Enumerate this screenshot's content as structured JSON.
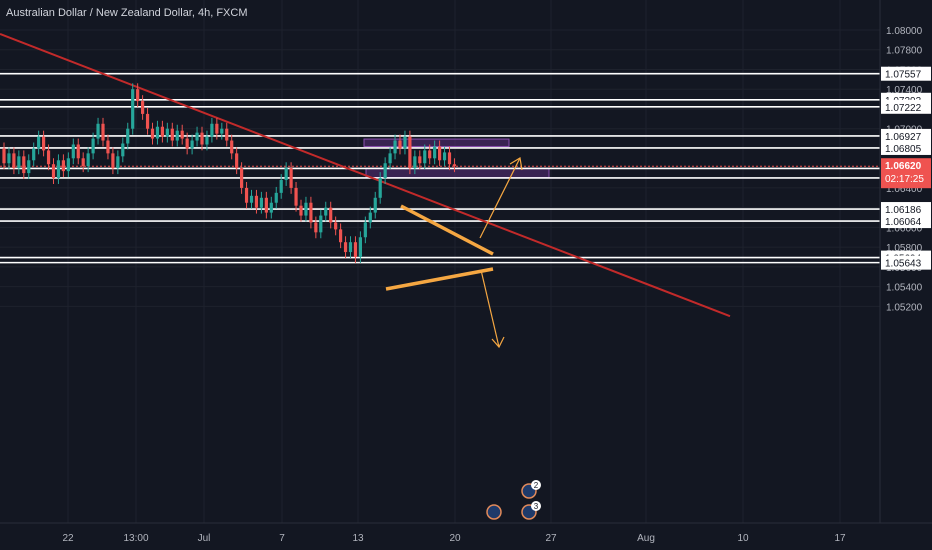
{
  "header": {
    "title": "Australian Dollar / New Zealand Dollar, 4h, FXCM"
  },
  "colors": {
    "background": "#131722",
    "grid": "#1e222d",
    "text": "#b2b5be",
    "up": "#26a69a",
    "down": "#ef5350",
    "trendline": "#c22a2a",
    "pattern": "#f5a742",
    "zone_fill": "#5a2e7a",
    "level_line": "#ffffff",
    "current_price_bg": "#ef5350"
  },
  "chart_data": {
    "type": "candlestick",
    "symbol": "AUD/NZD",
    "interval": "4h",
    "source": "FXCM",
    "y_axis": {
      "range": [
        1.051,
        1.0815
      ],
      "ticks": [
        "1.08000",
        "1.07800",
        "1.07600",
        "1.07400",
        "1.07200",
        "1.07000",
        "1.06800",
        "1.06600",
        "1.06400",
        "1.06200",
        "1.06000",
        "1.05800",
        "1.05600",
        "1.05400",
        "1.05200"
      ]
    },
    "x_axis": {
      "ticks": [
        "22",
        "13:00",
        "Jul",
        "7",
        "13",
        "20",
        "27",
        "Aug",
        "10",
        "17"
      ]
    },
    "grid": true,
    "horizontal_levels": [
      1.07557,
      1.07293,
      1.07222,
      1.06927,
      1.06805,
      1.06597,
      1.06501,
      1.06186,
      1.06064,
      1.05694,
      1.05643
    ],
    "current_price": {
      "value": "1.06620",
      "countdown": "02:17:25"
    },
    "zones": [
      {
        "label": "resistance box",
        "from": 1.0682,
        "to": 1.06895
      },
      {
        "label": "support box",
        "from": 1.06505,
        "to": 1.066
      }
    ],
    "trendline": {
      "from": [
        "start",
        1.0796
      ],
      "to": [
        "Aug",
        1.051
      ]
    },
    "pattern": "symmetrical triangle with breakout arrows",
    "badges": [
      {
        "label": "2"
      },
      {
        "label": "3"
      }
    ]
  }
}
